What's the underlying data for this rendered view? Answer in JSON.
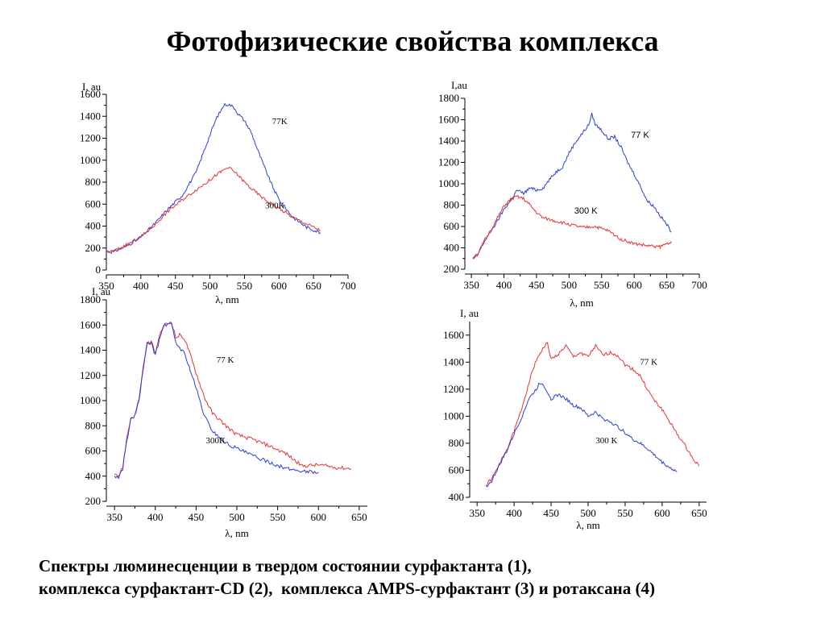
{
  "title": "Фотофизические свойства комплекса",
  "caption": {
    "line1": "Спектры люминесценции в твердом состоянии сурфактанта (1),",
    "line2": "комплекса сурфактант-CD (2),  комплекса AMPS-сурфактант (3) и ротаксана (4)"
  },
  "colors": {
    "blue": "#2b3fd6",
    "red": "#e53535",
    "axis": "#000000"
  },
  "chart_data": [
    {
      "type": "line",
      "ylabel": "I, au",
      "xlabel": "λ, nm",
      "xlim": [
        350,
        700
      ],
      "ylim": [
        0,
        1600
      ],
      "xticks": [
        350,
        400,
        450,
        500,
        550,
        600,
        650,
        700
      ],
      "yticks": [
        0,
        200,
        400,
        600,
        800,
        1000,
        1200,
        1400,
        1600
      ],
      "series": [
        {
          "name": "77K",
          "color": "#2b3fd6",
          "x": [
            350,
            360,
            380,
            400,
            420,
            440,
            460,
            480,
            490,
            500,
            510,
            515,
            520,
            525,
            530,
            535,
            540,
            550,
            560,
            570,
            580,
            590,
            600,
            620,
            640,
            660
          ],
          "y": [
            170,
            165,
            220,
            300,
            420,
            560,
            680,
            890,
            1060,
            1230,
            1390,
            1440,
            1500,
            1510,
            1500,
            1480,
            1430,
            1360,
            1250,
            1080,
            920,
            770,
            640,
            480,
            390,
            340
          ]
        },
        {
          "name": "300K",
          "color": "#e53535",
          "x": [
            350,
            360,
            380,
            400,
            420,
            440,
            460,
            480,
            500,
            510,
            520,
            525,
            530,
            540,
            550,
            560,
            580,
            600,
            620,
            640,
            660
          ],
          "y": [
            170,
            170,
            230,
            300,
            410,
            540,
            640,
            730,
            820,
            870,
            910,
            930,
            920,
            870,
            800,
            740,
            640,
            560,
            480,
            420,
            360
          ]
        }
      ],
      "annotations": [
        {
          "text": "77K",
          "x": 590,
          "y": 1330
        },
        {
          "text": "300K",
          "x": 580,
          "y": 560
        }
      ]
    },
    {
      "type": "line",
      "ylabel": "I,au",
      "xlabel": "λ, nm",
      "xlim": [
        340,
        700
      ],
      "ylim": [
        200,
        1800
      ],
      "xticks": [
        350,
        400,
        450,
        500,
        550,
        600,
        650,
        700
      ],
      "yticks": [
        200,
        400,
        600,
        800,
        1000,
        1200,
        1400,
        1600,
        1800
      ],
      "series": [
        {
          "name": "77 K",
          "color": "#2b3fd6",
          "x": [
            352,
            360,
            370,
            380,
            390,
            400,
            410,
            420,
            430,
            440,
            450,
            460,
            470,
            480,
            490,
            500,
            510,
            520,
            530,
            535,
            540,
            550,
            560,
            570,
            580,
            590,
            600,
            610,
            620,
            630,
            640,
            650,
            657
          ],
          "y": [
            300,
            340,
            460,
            560,
            650,
            760,
            840,
            940,
            910,
            960,
            940,
            960,
            1040,
            1110,
            1160,
            1290,
            1390,
            1470,
            1550,
            1650,
            1560,
            1500,
            1420,
            1440,
            1340,
            1200,
            1090,
            970,
            840,
            790,
            700,
            620,
            550
          ]
        },
        {
          "name": "300 K",
          "color": "#e53535",
          "x": [
            352,
            360,
            370,
            380,
            390,
            400,
            410,
            420,
            430,
            440,
            450,
            460,
            480,
            500,
            520,
            540,
            560,
            580,
            600,
            620,
            640,
            657
          ],
          "y": [
            300,
            340,
            470,
            560,
            680,
            790,
            850,
            880,
            860,
            800,
            730,
            680,
            650,
            620,
            590,
            600,
            560,
            480,
            440,
            420,
            410,
            460
          ]
        }
      ],
      "annotations": [
        {
          "text": "77 K",
          "x": 595,
          "y": 1430
        },
        {
          "text": "300 K",
          "x": 508,
          "y": 720
        }
      ]
    },
    {
      "type": "line",
      "ylabel": "I, au",
      "xlabel": "λ, nm",
      "xlim": [
        340,
        660
      ],
      "ylim": [
        200,
        1800
      ],
      "xticks": [
        350,
        400,
        450,
        500,
        550,
        600,
        650
      ],
      "yticks": [
        200,
        400,
        600,
        800,
        1000,
        1200,
        1400,
        1600,
        1800
      ],
      "series": [
        {
          "name": "77 K",
          "color": "#e53535",
          "x": [
            350,
            355,
            360,
            365,
            370,
            375,
            380,
            385,
            390,
            395,
            400,
            405,
            410,
            415,
            420,
            425,
            430,
            435,
            440,
            450,
            460,
            470,
            480,
            490,
            500,
            520,
            540,
            560,
            580,
            600,
            620,
            640
          ],
          "y": [
            430,
            400,
            470,
            700,
            860,
            880,
            1020,
            1250,
            1450,
            1470,
            1380,
            1500,
            1600,
            1610,
            1630,
            1500,
            1520,
            1500,
            1420,
            1220,
            1030,
            900,
            840,
            780,
            730,
            690,
            640,
            580,
            480,
            490,
            470,
            460
          ]
        },
        {
          "name": "300K",
          "color": "#2b3fd6",
          "x": [
            350,
            355,
            360,
            365,
            370,
            375,
            380,
            385,
            390,
            395,
            400,
            405,
            410,
            415,
            420,
            425,
            430,
            435,
            440,
            450,
            460,
            470,
            480,
            490,
            500,
            520,
            540,
            560,
            580,
            600
          ],
          "y": [
            400,
            390,
            460,
            680,
            850,
            880,
            1000,
            1240,
            1450,
            1460,
            1360,
            1480,
            1590,
            1610,
            1600,
            1460,
            1420,
            1380,
            1300,
            1100,
            880,
            760,
            700,
            650,
            620,
            560,
            510,
            460,
            440,
            430
          ]
        }
      ],
      "annotations": [
        {
          "text": "77 K",
          "x": 475,
          "y": 1300
        },
        {
          "text": "300K",
          "x": 462,
          "y": 660
        }
      ]
    },
    {
      "type": "line",
      "ylabel": "I, au",
      "xlabel": "λ, nm",
      "xlim": [
        340,
        660
      ],
      "ylim": [
        400,
        1700
      ],
      "xticks": [
        350,
        400,
        450,
        500,
        550,
        600,
        650
      ],
      "yticks": [
        400,
        600,
        800,
        1000,
        1200,
        1400,
        1600
      ],
      "series": [
        {
          "name": "77 K",
          "color": "#e53535",
          "x": [
            362,
            370,
            380,
            390,
            400,
            410,
            420,
            430,
            440,
            445,
            450,
            460,
            470,
            480,
            490,
            500,
            510,
            520,
            530,
            540,
            550,
            560,
            570,
            580,
            590,
            600,
            610,
            620,
            630,
            640,
            650
          ],
          "y": [
            490,
            540,
            640,
            750,
            890,
            1050,
            1250,
            1420,
            1510,
            1540,
            1420,
            1460,
            1520,
            1440,
            1470,
            1440,
            1520,
            1450,
            1470,
            1450,
            1380,
            1350,
            1300,
            1200,
            1110,
            1050,
            960,
            870,
            790,
            700,
            630
          ]
        },
        {
          "name": "300 K",
          "color": "#2b3fd6",
          "x": [
            362,
            370,
            380,
            390,
            400,
            410,
            420,
            430,
            435,
            440,
            450,
            460,
            470,
            480,
            490,
            500,
            510,
            520,
            530,
            540,
            550,
            560,
            570,
            580,
            590,
            600,
            610,
            620
          ],
          "y": [
            480,
            520,
            640,
            740,
            870,
            990,
            1130,
            1200,
            1250,
            1230,
            1130,
            1160,
            1130,
            1080,
            1060,
            1000,
            1030,
            980,
            960,
            920,
            880,
            830,
            800,
            760,
            710,
            660,
            620,
            590
          ]
        }
      ],
      "annotations": [
        {
          "text": "77 K",
          "x": 570,
          "y": 1380
        },
        {
          "text": "300 K",
          "x": 510,
          "y": 800
        }
      ]
    }
  ]
}
